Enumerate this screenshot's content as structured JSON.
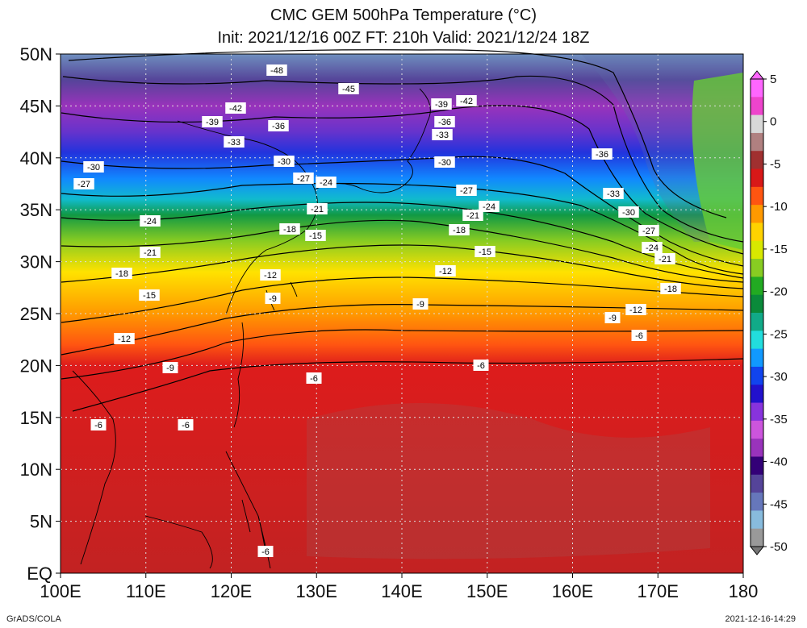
{
  "title_line1": "CMC GEM 500hPa Temperature (°C)",
  "title_line2": "Init: 2021/12/16 00Z  FT: 210h  Valid: 2021/12/24 18Z",
  "footer_left": "GrADS/COLA",
  "footer_right": "2021-12-16-14:29",
  "map": {
    "lon_range": [
      100,
      180
    ],
    "lat_range": [
      0,
      50
    ],
    "lon_ticks": [
      "100E",
      "110E",
      "120E",
      "130E",
      "140E",
      "150E",
      "160E",
      "170E",
      "180"
    ],
    "lat_ticks": [
      "EQ",
      "5N",
      "10N",
      "15N",
      "20N",
      "25N",
      "30N",
      "35N",
      "40N",
      "45N",
      "50N"
    ],
    "grid_lines": "dotted"
  },
  "colorbar": {
    "labels": [
      "5",
      "0",
      "-5",
      "-10",
      "-15",
      "-20",
      "-25",
      "-30",
      "-35",
      "-40",
      "-45",
      "-50"
    ],
    "colors": [
      "#ff66ff",
      "#ee44cc",
      "#d8d8d8",
      "#b08080",
      "#a03030",
      "#d81818",
      "#ff5511",
      "#ff9900",
      "#ffd200",
      "#d8e800",
      "#88cc22",
      "#22aa22",
      "#0a8a3a",
      "#11aa88",
      "#22dddd",
      "#1199ff",
      "#1144ee",
      "#2211cc",
      "#8833dd",
      "#cc55dd",
      "#9933bb",
      "#330077",
      "#554499",
      "#6677bb",
      "#88bbdd",
      "#999999"
    ]
  },
  "contour_labels": [
    {
      "text": "-48"
    },
    {
      "text": "-45"
    },
    {
      "text": "-42"
    },
    {
      "text": "-42"
    },
    {
      "text": "-39"
    },
    {
      "text": "-39"
    },
    {
      "text": "-36"
    },
    {
      "text": "-36"
    },
    {
      "text": "-36"
    },
    {
      "text": "-33"
    },
    {
      "text": "-33"
    },
    {
      "text": "-33"
    },
    {
      "text": "-30"
    },
    {
      "text": "-30"
    },
    {
      "text": "-30"
    },
    {
      "text": "-30"
    },
    {
      "text": "-27"
    },
    {
      "text": "-27"
    },
    {
      "text": "-27"
    },
    {
      "text": "-27"
    },
    {
      "text": "-24"
    },
    {
      "text": "-24"
    },
    {
      "text": "-24"
    },
    {
      "text": "-24"
    },
    {
      "text": "-21"
    },
    {
      "text": "-21"
    },
    {
      "text": "-21"
    },
    {
      "text": "-21"
    },
    {
      "text": "-18"
    },
    {
      "text": "-18"
    },
    {
      "text": "-18"
    },
    {
      "text": "-18"
    },
    {
      "text": "-15"
    },
    {
      "text": "-15"
    },
    {
      "text": "-15"
    },
    {
      "text": "-12"
    },
    {
      "text": "-12"
    },
    {
      "text": "-12"
    },
    {
      "text": "-12"
    },
    {
      "text": "-9"
    },
    {
      "text": "-9"
    },
    {
      "text": "-9"
    },
    {
      "text": "-9"
    },
    {
      "text": "-6"
    },
    {
      "text": "-6"
    },
    {
      "text": "-6"
    },
    {
      "text": "-6"
    },
    {
      "text": "-6"
    },
    {
      "text": "-6"
    }
  ]
}
